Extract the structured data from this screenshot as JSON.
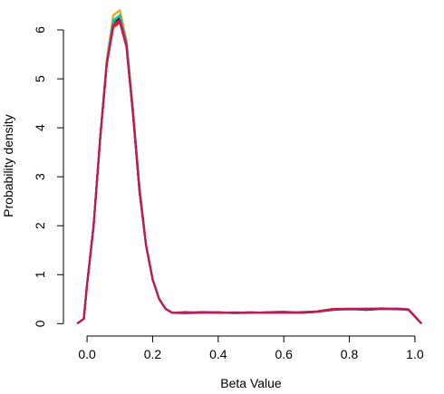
{
  "chart_data": {
    "type": "line",
    "title": "",
    "xlabel": "Beta Value",
    "ylabel": "Probability density",
    "xlim": [
      -0.05,
      1.05
    ],
    "ylim": [
      -0.05,
      6.5
    ],
    "xticks": [
      0.0,
      0.2,
      0.4,
      0.6,
      0.8,
      1.0
    ],
    "xtick_labels": [
      "0.0",
      "0.2",
      "0.4",
      "0.6",
      "0.8",
      "1.0"
    ],
    "yticks": [
      0,
      1,
      2,
      3,
      4,
      5,
      6
    ],
    "ytick_labels": [
      "0",
      "1",
      "2",
      "3",
      "4",
      "5",
      "6"
    ],
    "grid": false,
    "legend": "none",
    "x": [
      -0.03,
      -0.01,
      0.0,
      0.02,
      0.04,
      0.06,
      0.08,
      0.1,
      0.12,
      0.14,
      0.16,
      0.18,
      0.2,
      0.22,
      0.24,
      0.26,
      0.3,
      0.35,
      0.4,
      0.45,
      0.5,
      0.55,
      0.6,
      0.65,
      0.7,
      0.75,
      0.8,
      0.85,
      0.9,
      0.95,
      0.98,
      1.0,
      1.02
    ],
    "series": [
      {
        "color": "#f0a500",
        "values": [
          0.0,
          0.1,
          0.8,
          2.0,
          3.8,
          5.4,
          6.3,
          6.4,
          5.8,
          4.4,
          2.8,
          1.6,
          0.9,
          0.5,
          0.3,
          0.22,
          0.22,
          0.24,
          0.23,
          0.22,
          0.23,
          0.22,
          0.23,
          0.24,
          0.25,
          0.3,
          0.31,
          0.3,
          0.31,
          0.3,
          0.29,
          0.15,
          0.0
        ]
      },
      {
        "color": "#000000",
        "values": [
          0.0,
          0.1,
          0.8,
          2.0,
          3.8,
          5.3,
          6.1,
          6.25,
          5.7,
          4.3,
          2.7,
          1.6,
          0.9,
          0.5,
          0.3,
          0.22,
          0.22,
          0.23,
          0.23,
          0.22,
          0.22,
          0.23,
          0.24,
          0.22,
          0.24,
          0.28,
          0.3,
          0.28,
          0.3,
          0.3,
          0.29,
          0.14,
          0.0
        ]
      },
      {
        "color": "#2ca02c",
        "values": [
          0.0,
          0.1,
          0.8,
          2.0,
          3.8,
          5.3,
          6.15,
          6.3,
          5.7,
          4.35,
          2.75,
          1.6,
          0.9,
          0.5,
          0.3,
          0.22,
          0.22,
          0.23,
          0.22,
          0.23,
          0.22,
          0.22,
          0.23,
          0.22,
          0.24,
          0.29,
          0.29,
          0.3,
          0.31,
          0.3,
          0.29,
          0.15,
          0.0
        ]
      },
      {
        "color": "#17becf",
        "values": [
          0.0,
          0.1,
          0.8,
          2.0,
          3.8,
          5.35,
          6.2,
          6.3,
          5.75,
          4.35,
          2.75,
          1.6,
          0.9,
          0.5,
          0.3,
          0.22,
          0.24,
          0.22,
          0.23,
          0.21,
          0.22,
          0.22,
          0.22,
          0.23,
          0.25,
          0.3,
          0.3,
          0.31,
          0.3,
          0.31,
          0.29,
          0.15,
          0.0
        ]
      },
      {
        "color": "#5b7fb8",
        "values": [
          0.0,
          0.1,
          0.8,
          2.0,
          3.8,
          5.3,
          6.1,
          6.2,
          5.7,
          4.3,
          2.7,
          1.6,
          0.9,
          0.5,
          0.3,
          0.22,
          0.21,
          0.22,
          0.22,
          0.22,
          0.23,
          0.22,
          0.22,
          0.22,
          0.24,
          0.29,
          0.29,
          0.29,
          0.3,
          0.29,
          0.28,
          0.14,
          0.0
        ]
      },
      {
        "color": "#d62728",
        "values": [
          0.0,
          0.1,
          0.8,
          2.0,
          3.8,
          5.3,
          6.05,
          6.15,
          5.65,
          4.3,
          2.7,
          1.6,
          0.9,
          0.5,
          0.3,
          0.22,
          0.23,
          0.22,
          0.23,
          0.22,
          0.22,
          0.23,
          0.22,
          0.23,
          0.25,
          0.3,
          0.3,
          0.3,
          0.31,
          0.3,
          0.29,
          0.15,
          0.0
        ]
      },
      {
        "color": "#c2185b",
        "values": [
          0.0,
          0.1,
          0.8,
          2.0,
          3.8,
          5.3,
          6.1,
          6.2,
          5.7,
          4.3,
          2.7,
          1.6,
          0.9,
          0.5,
          0.3,
          0.22,
          0.22,
          0.23,
          0.22,
          0.22,
          0.23,
          0.22,
          0.23,
          0.22,
          0.24,
          0.29,
          0.3,
          0.3,
          0.3,
          0.3,
          0.29,
          0.15,
          0.0
        ]
      }
    ]
  }
}
